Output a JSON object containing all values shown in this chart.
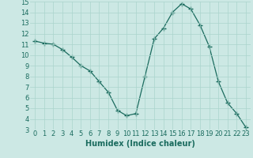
{
  "x": [
    0,
    1,
    2,
    3,
    4,
    5,
    6,
    7,
    8,
    9,
    10,
    11,
    12,
    13,
    14,
    15,
    16,
    17,
    18,
    19,
    20,
    21,
    22,
    23
  ],
  "y": [
    11.3,
    11.1,
    11.0,
    10.5,
    9.8,
    9.0,
    8.5,
    7.5,
    6.5,
    4.8,
    4.3,
    4.5,
    8.0,
    11.5,
    12.5,
    14.0,
    14.8,
    14.3,
    12.8,
    10.8,
    7.5,
    5.5,
    4.5,
    3.2
  ],
  "xlim": [
    -0.5,
    23.5
  ],
  "ylim": [
    3,
    15
  ],
  "yticks": [
    3,
    4,
    5,
    6,
    7,
    8,
    9,
    10,
    11,
    12,
    13,
    14,
    15
  ],
  "xticks": [
    0,
    1,
    2,
    3,
    4,
    5,
    6,
    7,
    8,
    9,
    10,
    11,
    12,
    13,
    14,
    15,
    16,
    17,
    18,
    19,
    20,
    21,
    22,
    23
  ],
  "xlabel": "Humidex (Indice chaleur)",
  "line_color": "#1a6b5e",
  "marker": "+",
  "marker_size": 4,
  "bg_color": "#cce8e4",
  "grid_color": "#aad4cc",
  "tick_fontsize": 6,
  "xlabel_fontsize": 7
}
